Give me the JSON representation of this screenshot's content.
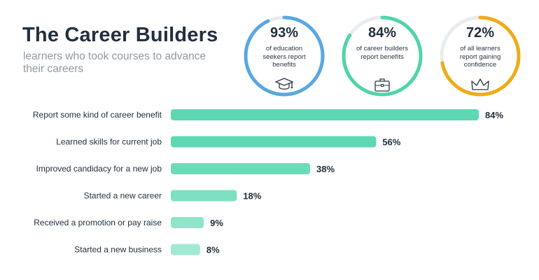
{
  "header": {
    "title": "The Career Builders",
    "subtitle": "learners who took courses to advance their careers"
  },
  "stats": [
    {
      "value": "93%",
      "description": "of education seekers report benefits",
      "fraction": 0.93,
      "color": "#5aa7e0",
      "icon": "graduation-cap-icon"
    },
    {
      "value": "84%",
      "description": "of career builders report benefits",
      "fraction": 0.84,
      "color": "#4fd4a9",
      "icon": "briefcase-icon"
    },
    {
      "value": "72%",
      "description": "of all learners report gaining confidence",
      "fraction": 0.72,
      "color": "#f0ab16",
      "icon": "crown-icon"
    }
  ],
  "colors": {
    "track": "#e8ecef",
    "bar_label": "#1f2d3a"
  },
  "chart_data": {
    "type": "bar",
    "orientation": "horizontal",
    "categories": [
      "Report some kind of career benefit",
      "Learned skills for current job",
      "Improved candidacy for a new job",
      "Started a new career",
      "Received a promotion or pay raise",
      "Started a new business"
    ],
    "values": [
      84,
      56,
      38,
      18,
      9,
      8
    ],
    "value_labels": [
      "84%",
      "56%",
      "38%",
      "18%",
      "9%",
      "8%"
    ],
    "bar_colors": [
      "#5ed8b4",
      "#5ed8b4",
      "#6ddbb9",
      "#7ee0c2",
      "#8fe4ca",
      "#a2e9d4"
    ],
    "xlim": [
      0,
      100
    ],
    "grid": false,
    "legend": "none"
  }
}
